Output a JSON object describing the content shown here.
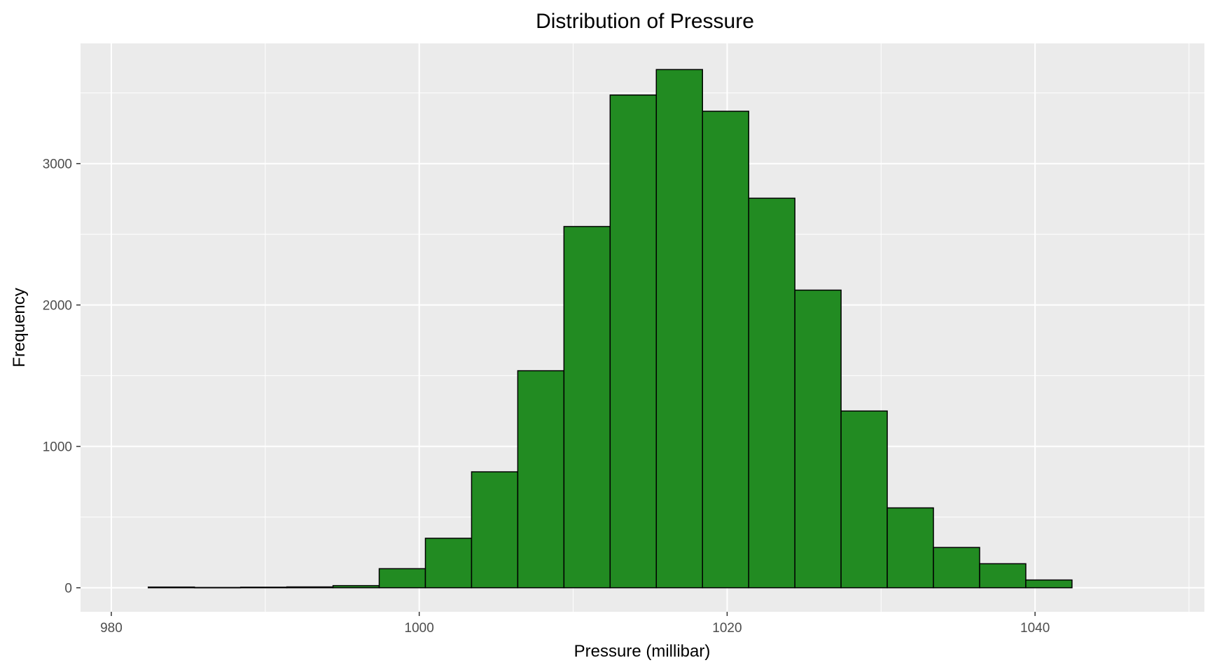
{
  "chart_data": {
    "type": "histogram",
    "title": "Distribution of Pressure",
    "xlabel": "Pressure (millibar)",
    "ylabel": "Frequency",
    "xlim": [
      978,
      1051
    ],
    "ylim": [
      -170,
      3850
    ],
    "x_ticks": [
      980,
      1000,
      1020,
      1040
    ],
    "y_ticks": [
      0,
      1000,
      2000,
      3000
    ],
    "x_minor_ticks": [
      990,
      1010,
      1030,
      1050
    ],
    "y_minor_ticks": [
      500,
      1500,
      2500,
      3500
    ],
    "grid": true,
    "colors": {
      "fill": "#228b22",
      "outline": "#000000",
      "panel": "#ebebeb",
      "grid": "#ffffff"
    },
    "bins": [
      {
        "x0": 982.4,
        "x1": 985.4,
        "value": 5
      },
      {
        "x0": 985.4,
        "x1": 988.4,
        "value": 2
      },
      {
        "x0": 988.4,
        "x1": 991.4,
        "value": 4
      },
      {
        "x0": 991.4,
        "x1": 994.4,
        "value": 6
      },
      {
        "x0": 994.4,
        "x1": 997.4,
        "value": 15
      },
      {
        "x0": 997.4,
        "x1": 1000.4,
        "value": 135
      },
      {
        "x0": 1000.4,
        "x1": 1003.4,
        "value": 350
      },
      {
        "x0": 1003.4,
        "x1": 1006.4,
        "value": 820
      },
      {
        "x0": 1006.4,
        "x1": 1009.4,
        "value": 1535
      },
      {
        "x0": 1009.4,
        "x1": 1012.4,
        "value": 2555
      },
      {
        "x0": 1012.4,
        "x1": 1015.4,
        "value": 3485
      },
      {
        "x0": 1015.4,
        "x1": 1018.4,
        "value": 3665
      },
      {
        "x0": 1018.4,
        "x1": 1021.4,
        "value": 3370
      },
      {
        "x0": 1021.4,
        "x1": 1024.4,
        "value": 2755
      },
      {
        "x0": 1024.4,
        "x1": 1027.4,
        "value": 2105
      },
      {
        "x0": 1027.4,
        "x1": 1030.4,
        "value": 1250
      },
      {
        "x0": 1030.4,
        "x1": 1033.4,
        "value": 565
      },
      {
        "x0": 1033.4,
        "x1": 1036.4,
        "value": 285
      },
      {
        "x0": 1036.4,
        "x1": 1039.4,
        "value": 170
      },
      {
        "x0": 1039.4,
        "x1": 1042.4,
        "value": 55
      }
    ]
  }
}
